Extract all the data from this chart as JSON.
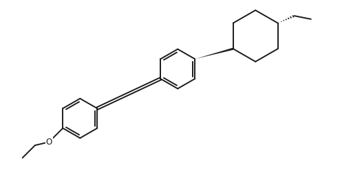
{
  "bg_color": "#ffffff",
  "line_color": "#1a1a1a",
  "line_width": 1.4,
  "figsize": [
    5.26,
    2.54
  ],
  "dpi": 100,
  "xlim": [
    0,
    10.5
  ],
  "ylim": [
    0,
    5.0
  ]
}
